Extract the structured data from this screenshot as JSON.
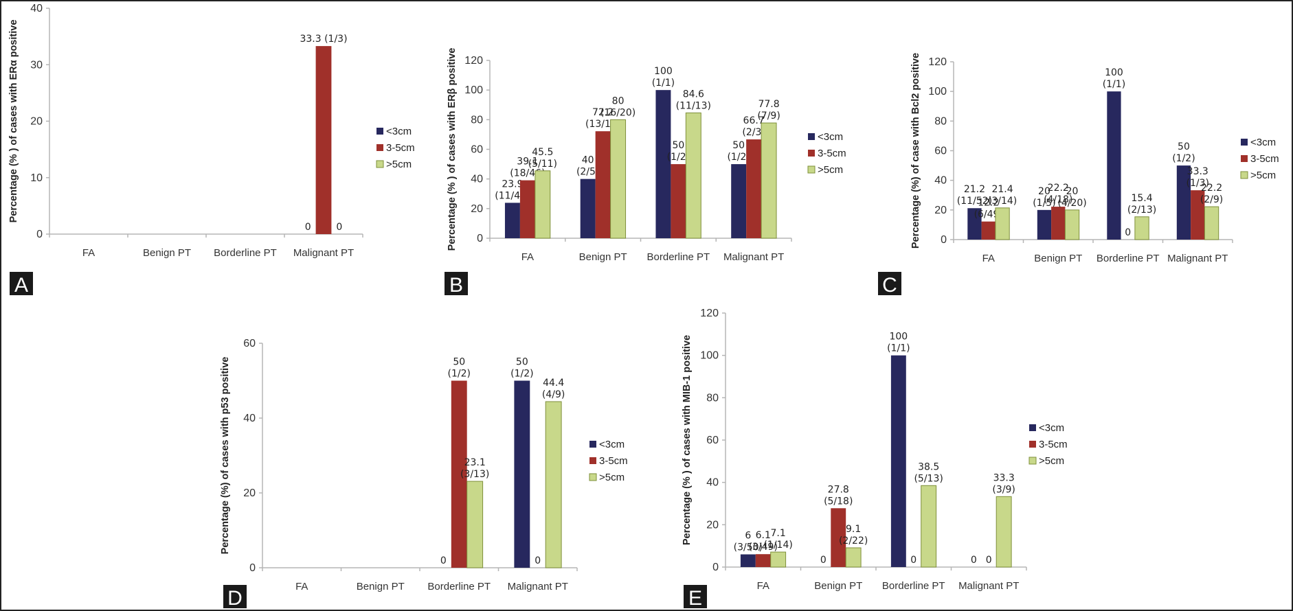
{
  "legend": [
    {
      "name": "<3cm",
      "color": "#27285e"
    },
    {
      "name": "3-5cm",
      "color": "#a0302a"
    },
    {
      "name": ">5cm",
      "color": "#c8d88a"
    }
  ],
  "chart_data": [
    {
      "panel": "A",
      "type": "bar",
      "title": "",
      "xlabel": "",
      "ylabel": "Percentage (% ) of cases with ERα positive",
      "ylim": [
        0,
        40
      ],
      "yticks": [
        0,
        10,
        20,
        30,
        40
      ],
      "grid": false,
      "legend_position": "right",
      "categories": [
        "FA",
        "Benign PT",
        "Borderline PT",
        "Malignant PT"
      ],
      "series": [
        {
          "name": "<3cm",
          "values": [
            null,
            null,
            null,
            0
          ],
          "labels": [
            "",
            "",
            "",
            "0"
          ]
        },
        {
          "name": "3-5cm",
          "values": [
            null,
            null,
            null,
            33.3
          ],
          "labels": [
            "",
            "",
            "",
            "33.3 (1/3)"
          ]
        },
        {
          "name": ">5cm",
          "values": [
            null,
            null,
            null,
            0
          ],
          "labels": [
            "",
            "",
            "",
            "0"
          ]
        }
      ]
    },
    {
      "panel": "B",
      "type": "bar",
      "title": "",
      "xlabel": "",
      "ylabel": "Percentage (% ) of cases with ERβ positive",
      "ylim": [
        0,
        120
      ],
      "yticks": [
        0,
        20,
        40,
        60,
        80,
        100,
        120
      ],
      "grid": false,
      "legend_position": "right",
      "categories": [
        "FA",
        "Benign PT",
        "Borderline PT",
        "Malignant PT"
      ],
      "series": [
        {
          "name": "<3cm",
          "values": [
            23.9,
            40,
            100,
            50
          ],
          "labels": [
            "23.9|(11/46)",
            "40|(2/5)",
            "100|(1/1)",
            "50|(1/2)"
          ]
        },
        {
          "name": "3-5cm",
          "values": [
            39.1,
            72.2,
            50,
            66.7
          ],
          "labels": [
            "39.1|(18/46)",
            "72.2|(13/18)",
            "50|(1/2)",
            "66.7|(2/3)"
          ]
        },
        {
          "name": ">5cm",
          "values": [
            45.5,
            80,
            84.6,
            77.8
          ],
          "labels": [
            "45.5|(5/11)",
            "80|(16/20)",
            "84.6|(11/13)",
            "77.8|(7/9)"
          ]
        }
      ]
    },
    {
      "panel": "C",
      "type": "bar",
      "title": "",
      "xlabel": "",
      "ylabel": "Percentage (%) of case with Bcl2 positive",
      "ylim": [
        0,
        120
      ],
      "yticks": [
        0,
        20,
        40,
        60,
        80,
        100,
        120
      ],
      "grid": false,
      "legend_position": "right",
      "categories": [
        "FA",
        "Benign PT",
        "Borderline PT",
        "Malignant PT"
      ],
      "series": [
        {
          "name": "<3cm",
          "values": [
            21.2,
            20,
            100,
            50
          ],
          "labels": [
            "21.2|(11/52)",
            "20|(1/5)",
            "100|(1/1)",
            "50|(1/2)"
          ]
        },
        {
          "name": "3-5cm",
          "values": [
            12.2,
            22.2,
            0,
            33.3
          ],
          "labels": [
            "12.2|(6/49)",
            "22.2|(4/18)",
            "0",
            "33.3|(1/3)"
          ]
        },
        {
          "name": ">5cm",
          "values": [
            21.4,
            20,
            15.4,
            22.2
          ],
          "labels": [
            "21.4|(3/14)",
            "20|(4/20)",
            "15.4|(2/13)",
            "22.2|(2/9)"
          ]
        }
      ]
    },
    {
      "panel": "D",
      "type": "bar",
      "title": "",
      "xlabel": "",
      "ylabel": "Percentage (%) of cases with p53 positive",
      "ylim": [
        0,
        60
      ],
      "yticks": [
        0,
        20,
        40,
        60
      ],
      "grid": false,
      "legend_position": "right",
      "categories": [
        "FA",
        "Benign PT",
        "Borderline PT",
        "Malignant PT"
      ],
      "series": [
        {
          "name": "<3cm",
          "values": [
            null,
            null,
            0,
            50
          ],
          "labels": [
            "",
            "",
            "0",
            "50|(1/2)"
          ]
        },
        {
          "name": "3-5cm",
          "values": [
            null,
            null,
            50,
            0
          ],
          "labels": [
            "",
            "",
            "50|(1/2)",
            "0"
          ]
        },
        {
          "name": ">5cm",
          "values": [
            null,
            null,
            23.1,
            44.4
          ],
          "labels": [
            "",
            "",
            "23.1|(3/13)",
            "44.4|(4/9)"
          ]
        }
      ]
    },
    {
      "panel": "E",
      "type": "bar",
      "title": "",
      "xlabel": "",
      "ylabel": "Percentage (% ) of cases with MIB-1 positive",
      "ylim": [
        0,
        120
      ],
      "yticks": [
        0,
        20,
        40,
        60,
        80,
        100,
        120
      ],
      "grid": false,
      "legend_position": "right",
      "categories": [
        "FA",
        "Benign PT",
        "Borderline PT",
        "Malignant PT"
      ],
      "series": [
        {
          "name": "<3cm",
          "values": [
            6,
            0,
            100,
            0
          ],
          "labels": [
            "6|(3/50)",
            "0",
            "100|(1/1)",
            "0"
          ]
        },
        {
          "name": "3-5cm",
          "values": [
            6.1,
            27.8,
            0,
            0
          ],
          "labels": [
            "6.1|(3/49)",
            "27.8|(5/18)",
            "0",
            "0"
          ]
        },
        {
          "name": ">5cm",
          "values": [
            7.1,
            9.1,
            38.5,
            33.3
          ],
          "labels": [
            "7.1|(1/14)",
            "9.1|(2/22)",
            "38.5|(5/13)",
            "33.3|(3/9)"
          ]
        }
      ]
    }
  ]
}
